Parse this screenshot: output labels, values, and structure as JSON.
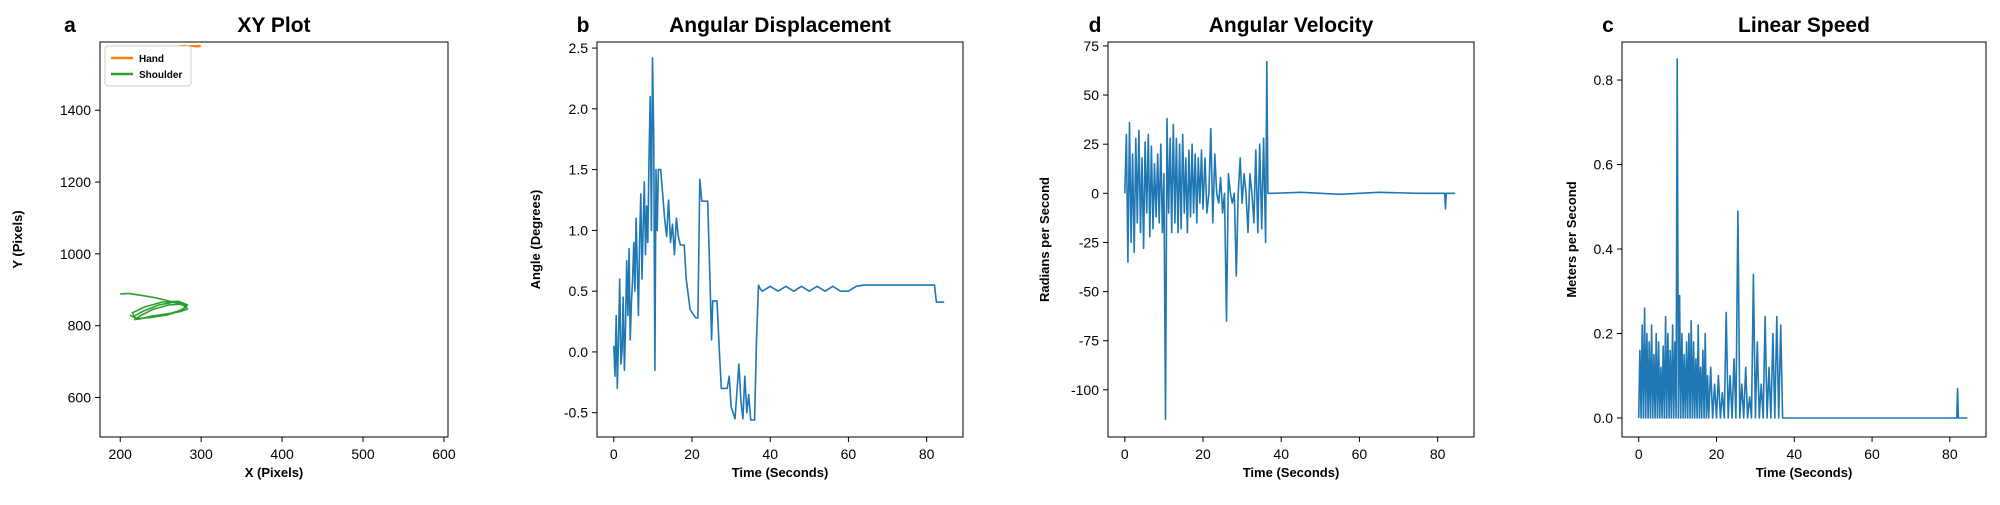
{
  "chart_data": [
    {
      "letter": "a",
      "type": "line",
      "title": "XY Plot",
      "xlabel": "X (Pixels)",
      "ylabel": "Y (Pixels)",
      "xlim": [
        175,
        605
      ],
      "ylim": [
        490,
        1590
      ],
      "xticks": [
        200,
        300,
        400,
        500,
        600
      ],
      "yticks": [
        600,
        800,
        1000,
        1200,
        1400
      ],
      "grid": false,
      "legend": "top-left",
      "series": [
        {
          "name": "Hand",
          "color": "#ff7f0e",
          "x": [
            268,
            272,
            276,
            280,
            285,
            290,
            293,
            296,
            299,
            297,
            292,
            286,
            280,
            275,
            271,
            274,
            279,
            284,
            289,
            294,
            298,
            292,
            285,
            278,
            272
          ],
          "y": [
            1576,
            1578,
            1579,
            1580,
            1578,
            1579,
            1577,
            1578,
            1579,
            1580,
            1579,
            1578,
            1579,
            1577,
            1578,
            1579,
            1580,
            1578,
            1579,
            1578,
            1577,
            1578,
            1579,
            1578,
            1577
          ]
        },
        {
          "name": "Shoulder",
          "color": "#2ca02c",
          "x": [
            200,
            210,
            225,
            245,
            265,
            280,
            283,
            272,
            255,
            238,
            226,
            218,
            225,
            240,
            260,
            278,
            282,
            270,
            250,
            232,
            222,
            216,
            228,
            248,
            268,
            281,
            278,
            262,
            242,
            226,
            218,
            215,
            230,
            252,
            272,
            283,
            276,
            258,
            238,
            222,
            214,
            212
          ],
          "y": [
            888,
            890,
            885,
            877,
            866,
            855,
            846,
            838,
            832,
            826,
            820,
            817,
            828,
            845,
            858,
            860,
            852,
            838,
            828,
            822,
            818,
            825,
            840,
            858,
            866,
            860,
            846,
            834,
            826,
            820,
            822,
            836,
            852,
            866,
            868,
            858,
            842,
            830,
            823,
            820,
            826,
            830
          ]
        }
      ]
    },
    {
      "letter": "b",
      "type": "line",
      "title": "Angular Displacement",
      "xlabel": "Time (Seconds)",
      "ylabel": "Angle (Degrees)",
      "xlim": [
        -4.3,
        89.3
      ],
      "ylim": [
        -0.7,
        2.55
      ],
      "xticks": [
        0,
        20,
        40,
        60,
        80
      ],
      "yticks": [
        -0.5,
        0.0,
        0.5,
        1.0,
        1.5,
        2.0,
        2.5
      ],
      "grid": false,
      "series": [
        {
          "color": "#1f77b4",
          "x": [
            0,
            0.3,
            0.6,
            0.9,
            1.2,
            1.5,
            1.8,
            2.1,
            2.4,
            2.7,
            3.0,
            3.3,
            3.6,
            3.9,
            4.2,
            4.5,
            4.8,
            5.1,
            5.4,
            5.7,
            6.0,
            6.3,
            6.6,
            6.9,
            7.2,
            7.5,
            7.8,
            8.1,
            8.4,
            8.7,
            9.0,
            9.3,
            9.6,
            9.9,
            10.2,
            10.5,
            10.8,
            11.1,
            11.4,
            12.0,
            13.0,
            13.5,
            14.0,
            14.5,
            15.0,
            15.5,
            16.0,
            16.5,
            17.0,
            17.5,
            18.0,
            18.5,
            19.5,
            20.5,
            21.0,
            21.5,
            22.0,
            22.5,
            23.0,
            24.0,
            24.5,
            25.0,
            25.3,
            25.6,
            26.0,
            26.4,
            27.0,
            27.5,
            28.0,
            29.0,
            29.5,
            30.0,
            31.0,
            32.0,
            32.5,
            33.0,
            33.5,
            34.0,
            34.5,
            35.0,
            35.5,
            36.0,
            36.5,
            37.0,
            37.4,
            38.0,
            40.0,
            42.0,
            44.0,
            46.0,
            48.0,
            50.0,
            52.0,
            54.0,
            56.0,
            58.0,
            60.0,
            62.0,
            64.0,
            66.0,
            70.0,
            75.0,
            80.0,
            82.0,
            82.5,
            84.5
          ],
          "y": [
            0.05,
            -0.2,
            0.3,
            -0.3,
            0.1,
            0.6,
            -0.1,
            0.0,
            0.45,
            -0.15,
            0.2,
            0.75,
            0.3,
            0.85,
            0.1,
            0.4,
            0.6,
            0.9,
            0.5,
            1.1,
            0.7,
            0.3,
            0.9,
            1.3,
            0.6,
            1.0,
            1.4,
            0.8,
            1.2,
            0.9,
            1.6,
            2.1,
            1.0,
            2.42,
            1.8,
            -0.15,
            1.5,
            1.0,
            1.5,
            1.5,
            1.1,
            0.95,
            1.25,
            0.9,
            1.05,
            0.8,
            1.1,
            0.95,
            0.88,
            0.88,
            0.88,
            0.6,
            0.35,
            0.3,
            0.28,
            0.28,
            1.42,
            1.24,
            1.24,
            1.24,
            0.7,
            0.1,
            0.42,
            0.42,
            0.42,
            0.42,
            0.0,
            -0.3,
            -0.3,
            -0.3,
            -0.2,
            -0.45,
            -0.55,
            -0.1,
            -0.4,
            -0.55,
            -0.2,
            -0.5,
            -0.35,
            -0.56,
            -0.56,
            -0.56,
            0.1,
            0.55,
            0.52,
            0.5,
            0.54,
            0.5,
            0.54,
            0.5,
            0.54,
            0.5,
            0.54,
            0.5,
            0.54,
            0.5,
            0.5,
            0.54,
            0.55,
            0.55,
            0.55,
            0.55,
            0.55,
            0.55,
            0.41,
            0.41
          ]
        }
      ]
    },
    {
      "letter": "d",
      "type": "line",
      "title": "Angular Velocity",
      "xlabel": "Time (Seconds)",
      "ylabel": "Radians per Second",
      "xlim": [
        -4.3,
        89.3
      ],
      "ylim": [
        -124,
        77
      ],
      "xticks": [
        0,
        20,
        40,
        60,
        80
      ],
      "yticks": [
        -100,
        -75,
        -50,
        -25,
        0,
        25,
        50,
        75
      ],
      "grid": false,
      "series": [
        {
          "color": "#1f77b4",
          "x": [
            0,
            0.4,
            0.8,
            1.2,
            1.6,
            2.0,
            2.4,
            2.8,
            3.2,
            3.6,
            4.0,
            4.4,
            4.8,
            5.2,
            5.6,
            6.0,
            6.4,
            6.8,
            7.2,
            7.6,
            8.0,
            8.4,
            8.8,
            9.2,
            9.6,
            10.0,
            10.4,
            10.8,
            11.2,
            11.6,
            12.0,
            12.4,
            12.8,
            13.2,
            13.6,
            14.0,
            14.4,
            14.8,
            15.2,
            15.6,
            16.0,
            16.4,
            16.8,
            17.2,
            17.6,
            18.0,
            18.4,
            18.8,
            19.2,
            19.6,
            20.0,
            20.5,
            21.0,
            21.5,
            22.0,
            22.5,
            23.0,
            23.5,
            24.0,
            24.5,
            25.0,
            25.5,
            26.0,
            26.5,
            27.0,
            27.5,
            28.0,
            28.5,
            29.0,
            29.5,
            30.0,
            30.5,
            31.0,
            31.5,
            32.0,
            32.5,
            33.0,
            33.5,
            34.0,
            34.5,
            35.0,
            35.5,
            36.0,
            36.3,
            36.6,
            37.0,
            38.0,
            45.0,
            55.0,
            65.0,
            75.0,
            81.8,
            82.0,
            82.2,
            84.5
          ],
          "y": [
            0,
            30,
            -35,
            36,
            -25,
            20,
            -30,
            28,
            -15,
            32,
            -20,
            18,
            -28,
            26,
            -10,
            30,
            -22,
            24,
            -18,
            15,
            -12,
            20,
            -15,
            25,
            -20,
            10,
            -115,
            38,
            -10,
            28,
            -20,
            35,
            -15,
            28,
            -20,
            25,
            -18,
            30,
            -10,
            18,
            -20,
            22,
            -12,
            25,
            -10,
            20,
            -15,
            18,
            -5,
            22,
            -8,
            18,
            -10,
            0,
            33,
            -15,
            20,
            0,
            -5,
            8,
            -10,
            0,
            -65,
            10,
            0,
            -5,
            0,
            -42,
            0,
            18,
            -5,
            10,
            0,
            -20,
            10,
            0,
            -15,
            22,
            -20,
            25,
            -18,
            28,
            -25,
            67,
            0,
            0,
            0,
            0.5,
            -0.5,
            0.5,
            0,
            0,
            -8,
            0,
            0
          ]
        }
      ]
    },
    {
      "letter": "c",
      "type": "line",
      "title": "Linear Speed",
      "xlabel": "Time (Seconds)",
      "ylabel": "Meters per Second",
      "xlim": [
        -4.3,
        89.3
      ],
      "ylim": [
        -0.045,
        0.89
      ],
      "xticks": [
        0,
        20,
        40,
        60,
        80
      ],
      "yticks": [
        0.0,
        0.2,
        0.4,
        0.6,
        0.8
      ],
      "grid": false,
      "series": [
        {
          "color": "#1f77b4",
          "x": [
            0,
            0.3,
            0.6,
            0.9,
            1.2,
            1.5,
            1.8,
            2.1,
            2.4,
            2.7,
            3.0,
            3.3,
            3.6,
            3.9,
            4.2,
            4.5,
            4.8,
            5.1,
            5.4,
            5.7,
            6.0,
            6.3,
            6.6,
            6.9,
            7.2,
            7.5,
            7.8,
            8.1,
            8.4,
            8.7,
            9.0,
            9.3,
            9.6,
            9.9,
            10.2,
            10.5,
            10.8,
            11.1,
            11.4,
            11.7,
            12.0,
            12.3,
            12.6,
            12.9,
            13.2,
            13.5,
            13.8,
            14.1,
            14.4,
            14.7,
            15.0,
            15.3,
            15.6,
            15.9,
            16.2,
            16.5,
            16.8,
            17.1,
            17.4,
            17.7,
            18.0,
            18.5,
            19.0,
            19.5,
            20.0,
            20.5,
            21.0,
            21.5,
            22.0,
            22.5,
            23.0,
            23.5,
            24.0,
            24.5,
            25.0,
            25.5,
            26.0,
            26.5,
            27.0,
            27.5,
            28.0,
            28.5,
            29.0,
            29.5,
            30.0,
            30.5,
            31.0,
            31.5,
            32.0,
            32.5,
            33.0,
            33.5,
            34.0,
            34.5,
            35.0,
            35.5,
            36.0,
            36.5,
            37.0,
            40.0,
            50.0,
            60.0,
            70.0,
            81.8,
            82.0,
            82.2,
            84.5
          ],
          "y": [
            0,
            0.16,
            0,
            0.22,
            0,
            0.26,
            0,
            0.2,
            0,
            0.18,
            0,
            0.22,
            0,
            0.15,
            0,
            0.2,
            0,
            0.18,
            0,
            0.12,
            0,
            0.17,
            0,
            0.24,
            0,
            0.2,
            0,
            0.16,
            0,
            0.22,
            0,
            0.18,
            0,
            0.85,
            0,
            0.29,
            0,
            0.2,
            0,
            0.15,
            0,
            0.18,
            0,
            0.2,
            0,
            0.23,
            0,
            0.18,
            0,
            0.14,
            0,
            0.22,
            0,
            0.12,
            0,
            0.16,
            0,
            0.2,
            0,
            0.1,
            0,
            0.12,
            0,
            0.08,
            0,
            0.1,
            0,
            0.06,
            0,
            0.25,
            0,
            0.1,
            0,
            0.14,
            0,
            0.49,
            0,
            0.08,
            0,
            0.12,
            0,
            0.05,
            0,
            0.34,
            0,
            0.18,
            0,
            0.08,
            0,
            0.24,
            0,
            0.12,
            0,
            0.2,
            0,
            0.24,
            0,
            0.22,
            0,
            0,
            0,
            0,
            0,
            0,
            0.07,
            0,
            0
          ]
        }
      ]
    }
  ]
}
